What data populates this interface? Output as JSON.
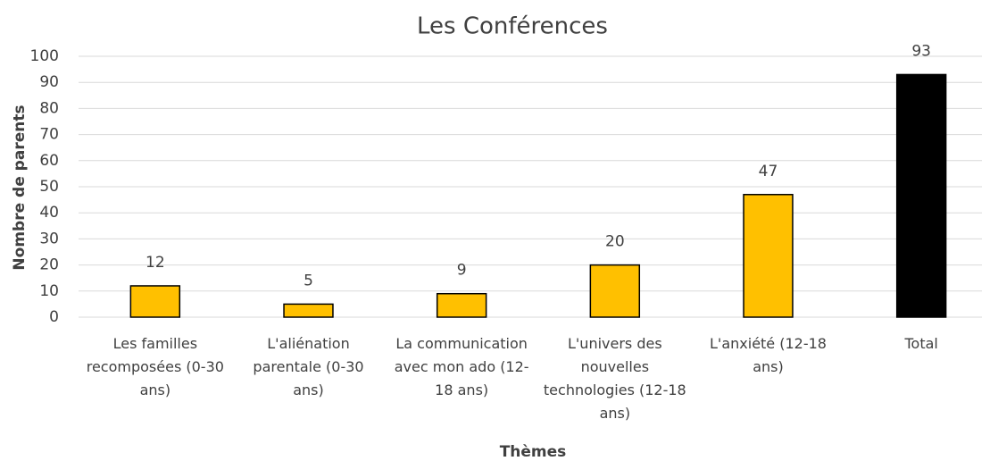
{
  "chart_data": {
    "type": "bar",
    "title": "Les Conférences",
    "x_label": "Thèmes",
    "y_label": "Nombre de parents",
    "categories": [
      "Les familles recomposées (0-30 ans)",
      "L'aliénation parentale (0-30 ans)",
      "La communication avec mon ado (12-18 ans)",
      "L'univers des nouvelles technologies (12-18 ans)",
      "L'anxiété (12-18 ans)",
      "Total"
    ],
    "values": [
      12,
      5,
      9,
      20,
      47,
      93
    ],
    "colors": [
      "#ffc000",
      "#ffc000",
      "#ffc000",
      "#ffc000",
      "#ffc000",
      "#000000"
    ],
    "ylim": [
      0,
      100
    ],
    "yticks": [
      0,
      10,
      20,
      30,
      40,
      50,
      60,
      70,
      80,
      90,
      100
    ],
    "grid": true
  }
}
